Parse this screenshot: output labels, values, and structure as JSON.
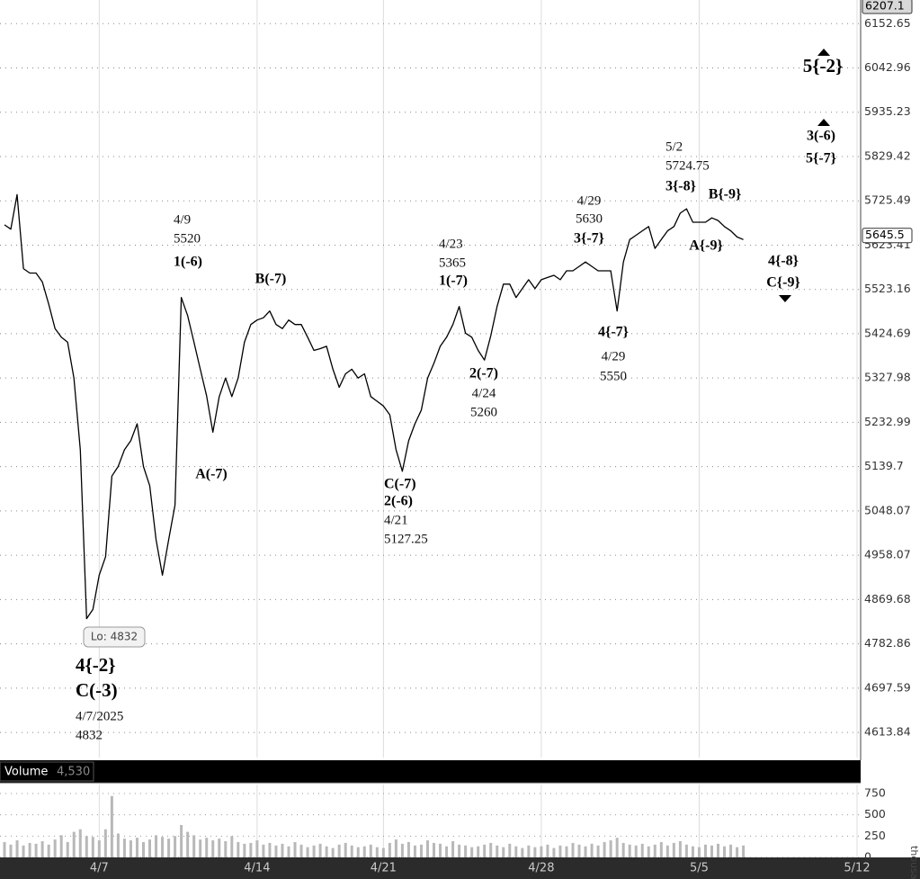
{
  "chart_data": [
    {
      "type": "line",
      "color": "#000000",
      "log": true,
      "grid": true,
      "categories": [
        null,
        null,
        null,
        null,
        null,
        null,
        null,
        null,
        null,
        null,
        null,
        null,
        null,
        null,
        null,
        "4/7",
        null,
        null,
        null,
        null,
        null,
        null,
        null,
        null,
        null,
        null,
        null,
        null,
        null,
        null,
        null,
        null,
        null,
        null,
        null,
        null,
        null,
        null,
        null,
        null,
        "4/14",
        null,
        null,
        null,
        null,
        null,
        null,
        null,
        null,
        null,
        null,
        null,
        null,
        null,
        null,
        null,
        null,
        null,
        null,
        null,
        "4/21",
        null,
        null,
        null,
        null,
        null,
        null,
        null,
        null,
        null,
        null,
        null,
        null,
        null,
        null,
        null,
        null,
        null,
        null,
        null,
        null,
        null,
        null,
        null,
        null,
        "4/28",
        null,
        null,
        null,
        null,
        null,
        null,
        null,
        null,
        null,
        null,
        null,
        null,
        null,
        null,
        null,
        null,
        null,
        null,
        null,
        null,
        null,
        null,
        null,
        null,
        "5/5",
        null,
        null,
        null,
        null,
        null,
        null,
        null,
        null,
        null,
        null,
        null,
        null,
        null,
        null,
        null,
        null,
        null,
        null,
        null,
        null,
        null,
        null,
        null,
        null,
        "5/12"
      ],
      "values": [
        5670,
        5660,
        5740,
        5570,
        5560,
        5560,
        5540,
        5490,
        5436,
        5417,
        5406,
        5328,
        5175,
        4832,
        4850,
        4918,
        4955,
        5120,
        5140,
        5175,
        5194,
        5230,
        5140,
        5100,
        4990,
        4918,
        4990,
        5060,
        5505,
        5465,
        5406,
        5347,
        5290,
        5212,
        5288,
        5328,
        5288,
        5328,
        5406,
        5445,
        5455,
        5460,
        5475,
        5445,
        5436,
        5455,
        5445,
        5445,
        5417,
        5388,
        5392,
        5397,
        5347,
        5308,
        5337,
        5347,
        5328,
        5337,
        5288,
        5278,
        5268,
        5249,
        5175,
        5130,
        5194,
        5230,
        5259,
        5328,
        5360,
        5397,
        5417,
        5445,
        5485,
        5426,
        5417,
        5388,
        5367,
        5420,
        5485,
        5535,
        5535,
        5505,
        5525,
        5545,
        5525,
        5545,
        5550,
        5555,
        5545,
        5565,
        5565,
        5575,
        5585,
        5575,
        5565,
        5565,
        5565,
        5475,
        5585,
        5636,
        5646,
        5656,
        5666,
        5616,
        5636,
        5656,
        5666,
        5697,
        5707,
        5676,
        5676,
        5676,
        5686,
        5680,
        5666,
        5656,
        5642,
        5636,
        null,
        null,
        null,
        null,
        null,
        null,
        null,
        null,
        null,
        null,
        null,
        null,
        null,
        null,
        null,
        null,
        null,
        null
      ],
      "ylim": [
        4567,
        6212
      ],
      "yticks": [
        6152.65,
        6042.96,
        5935.23,
        5829.42,
        5725.49,
        5623.41,
        5523.16,
        5424.69,
        5327.98,
        5232.99,
        5139.7,
        5048.07,
        4958.07,
        4869.68,
        4782.86,
        4697.59,
        4613.84
      ],
      "price_markers": [
        6207.1,
        5645.5
      ],
      "annotations": [
        {
          "lines": [
            "4{-2}",
            "C(-3)",
            "4/7/2025",
            "4832"
          ]
        },
        {
          "lines": [
            "Lo: 4832"
          ]
        },
        {
          "lines": [
            "4/9",
            "5520",
            "1(-6)"
          ]
        },
        {
          "lines": [
            "B(-7)"
          ]
        },
        {
          "lines": [
            "A(-7)"
          ]
        },
        {
          "lines": [
            "C(-7)",
            "2(-6)",
            "4/21",
            "5127.25"
          ]
        },
        {
          "lines": [
            "4/23",
            "5365",
            "1(-7)"
          ]
        },
        {
          "lines": [
            "2(-7)",
            "4/24",
            "5260"
          ]
        },
        {
          "lines": [
            "4/29",
            "5630",
            "3{-7}"
          ]
        },
        {
          "lines": [
            "4{-7}",
            "4/29",
            "5550"
          ]
        },
        {
          "lines": [
            "5/2",
            "5724.75",
            "3{-8}"
          ]
        },
        {
          "lines": [
            "B{-9}"
          ]
        },
        {
          "lines": [
            "A{-9}"
          ]
        },
        {
          "lines": [
            "5{-2}"
          ]
        },
        {
          "lines": [
            "3(-6)",
            "5{-7}"
          ]
        },
        {
          "lines": [
            "4{-8}",
            "C{-9}"
          ]
        }
      ]
    },
    {
      "type": "bar",
      "title": "Volume",
      "color": "#b8b8b8",
      "current_value": {
        "value": 4530,
        "label": "4,530"
      },
      "unit_label": "thousands",
      "values": [
        180,
        150,
        200,
        140,
        170,
        160,
        190,
        150,
        210,
        260,
        180,
        300,
        330,
        250,
        240,
        200,
        330,
        720,
        280,
        220,
        200,
        230,
        180,
        210,
        260,
        240,
        220,
        250,
        380,
        300,
        260,
        210,
        230,
        200,
        220,
        190,
        250,
        180,
        160,
        170,
        200,
        150,
        170,
        140,
        160,
        130,
        180,
        150,
        120,
        140,
        160,
        130,
        110,
        150,
        170,
        140,
        120,
        130,
        150,
        120,
        110,
        170,
        210,
        160,
        180,
        140,
        150,
        200,
        170,
        160,
        130,
        190,
        150,
        140,
        120,
        130,
        150,
        170,
        140,
        120,
        160,
        130,
        110,
        140,
        120,
        130,
        150,
        110,
        140,
        130,
        170,
        150,
        130,
        160,
        140,
        180,
        200,
        230,
        170,
        150,
        140,
        160,
        130,
        150,
        180,
        140,
        170,
        190,
        150,
        130,
        120,
        150,
        140,
        160,
        130,
        150,
        120,
        140
      ],
      "ylim": [
        0,
        876
      ],
      "yticks": [
        0,
        250,
        500,
        750
      ]
    }
  ]
}
